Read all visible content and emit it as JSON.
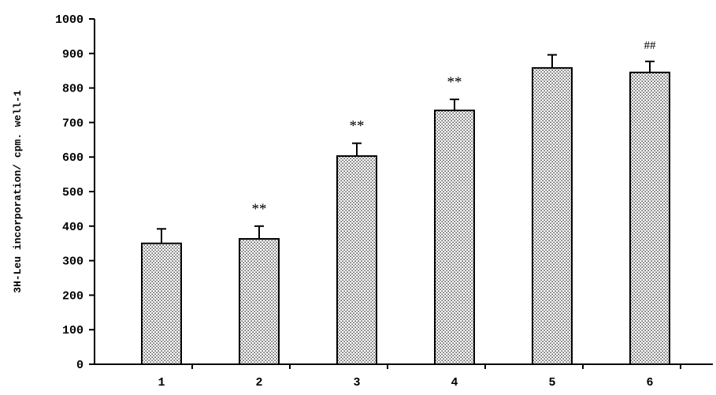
{
  "chart_data": {
    "type": "bar",
    "title": "",
    "xlabel": "",
    "ylabel": "3H-Leu incorporation/ cpm. well-1",
    "categories": [
      "1",
      "2",
      "3",
      "4",
      "5",
      "6"
    ],
    "values": [
      350,
      363,
      603,
      735,
      858,
      845
    ],
    "error_high": [
      392,
      400,
      640,
      767,
      896,
      877
    ],
    "annotations": [
      "",
      "**",
      "**",
      "**",
      "",
      "##"
    ],
    "ylim": [
      0,
      1000
    ],
    "yticks": [
      0,
      100,
      200,
      300,
      400,
      500,
      600,
      700,
      800,
      900,
      1000
    ],
    "grid": false,
    "legend": "none",
    "bar_fill": "dotted",
    "colors": {
      "bar_face": "#ffffff",
      "bar_dots": "#000000",
      "axis": "#000000"
    }
  }
}
